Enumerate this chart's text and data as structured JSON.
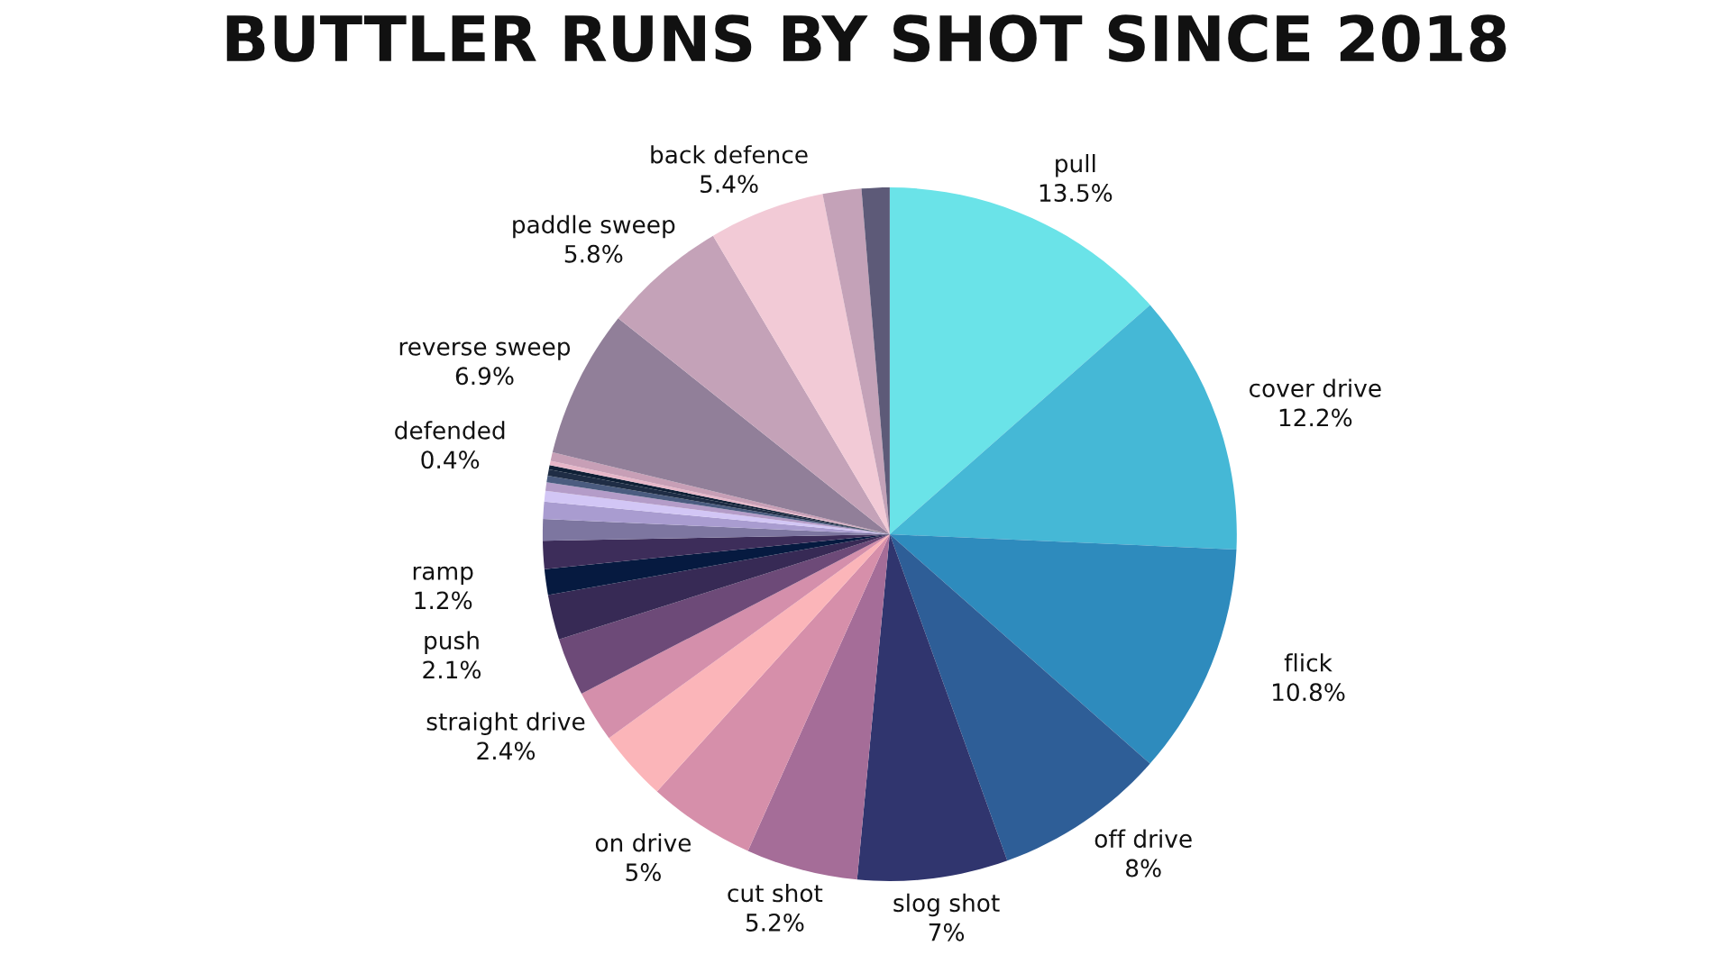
{
  "chart_data": {
    "type": "pie",
    "title": "BUTTLER RUNS BY SHOT SINCE 2018",
    "categories": [
      "pull",
      "cover drive",
      "flick",
      "off drive",
      "slog shot",
      "cut shot",
      "on drive",
      null,
      "straight drive",
      null,
      "push",
      "ramp",
      null,
      null,
      null,
      null,
      null,
      null,
      null,
      null,
      null,
      "defended",
      "reverse sweep",
      "paddle sweep",
      "back defence",
      null,
      null
    ],
    "values": [
      13.5,
      12.2,
      10.8,
      8,
      7,
      5.2,
      5,
      3.3,
      2.4,
      2.7,
      2.1,
      1.2,
      1.3,
      1.0,
      0.8,
      0.5,
      0.4,
      0.3,
      0.3,
      0.2,
      0.2,
      0.4,
      6.9,
      5.8,
      5.4,
      1.8,
      1.3
    ],
    "value_labels": [
      "13.5%",
      "12.2%",
      "10.8%",
      "8%",
      "7%",
      "5.2%",
      "5%",
      null,
      "2.4%",
      null,
      "2.1%",
      "1.2%",
      null,
      null,
      null,
      null,
      null,
      null,
      null,
      null,
      null,
      "0.4%",
      "6.9%",
      "5.8%",
      "5.4%",
      null,
      null
    ],
    "colors": [
      "#6ae3e8",
      "#45b8d6",
      "#2e8bbd",
      "#2e5e97",
      "#30356e",
      "#a56d98",
      "#d68faa",
      "#fbb5b9",
      "#d48fab",
      "#6d4a78",
      "#372a55",
      "#061a40",
      "#3d2d5a",
      "#7d76a0",
      "#a99cd0",
      "#d2c6f5",
      "#b49cc8",
      "#4b5c80",
      "#1f2d45",
      "#0f2036",
      "#e6b6c8",
      "#c79fb6",
      "#917f99",
      "#c4a2b8",
      "#f2cad6",
      "#c4a2b8",
      "#5d5a78"
    ],
    "legend": false
  }
}
